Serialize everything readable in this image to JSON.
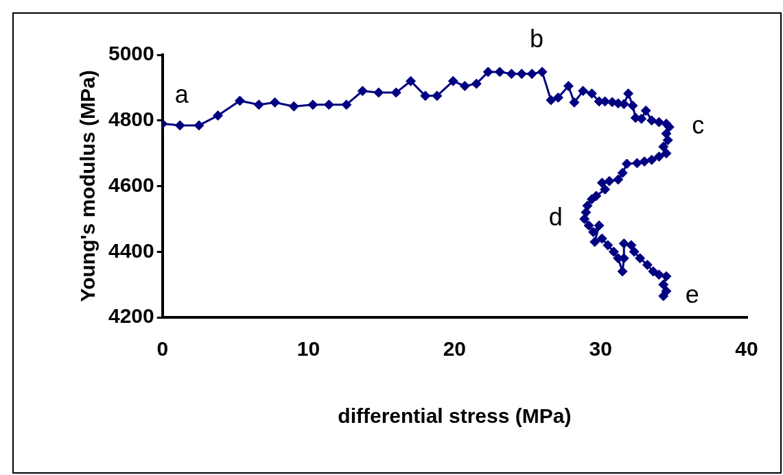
{
  "chart_data": {
    "type": "line",
    "xlabel": "differential stress (MPa)",
    "ylabel": "Young's modulus (MPa)",
    "xlim": [
      0,
      40
    ],
    "xticks": [
      0,
      10,
      20,
      30,
      40
    ],
    "ylim": [
      4200,
      5000
    ],
    "yticks": [
      4200,
      4400,
      4600,
      4800,
      5000
    ],
    "grid": false,
    "legend": false,
    "marker": "diamond",
    "line_style": "solid",
    "series": [
      {
        "color": "#000080",
        "x": [
          0,
          1.2,
          2.5,
          3.8,
          5.3,
          6.6,
          7.7,
          9,
          10.3,
          11.4,
          12.6,
          13.7,
          14.8,
          16,
          17,
          18,
          18.8,
          19.9,
          20.7,
          21.5,
          22.3,
          23.1,
          23.9,
          24.6,
          25.3,
          26,
          26.6,
          27.1,
          27.8,
          28.2,
          28.8,
          29.4,
          29.9,
          30.3,
          30.8,
          31.2,
          31.6,
          31.9,
          32.2,
          32.4,
          32.8,
          33.1,
          33.5,
          34,
          34.5,
          34.7,
          34.5,
          34.6,
          34.3,
          34.5,
          34,
          33.5,
          33,
          32.5,
          31.8,
          31.5,
          31.2,
          30.6,
          30.1,
          30.3,
          29.7,
          29.4,
          29.1,
          29,
          28.9,
          29.2,
          29.5,
          29.9,
          29.6,
          30.1,
          30.5,
          30.9,
          31.2,
          31.5,
          31.6,
          31.6,
          32.1,
          32.3,
          32.7,
          33.2,
          33.6,
          34,
          34.5,
          34.3,
          34.5,
          34.3
        ],
        "values": [
          4790,
          4785,
          4785,
          4815,
          4860,
          4848,
          4855,
          4843,
          4848,
          4848,
          4848,
          4890,
          4885,
          4885,
          4920,
          4875,
          4875,
          4920,
          4905,
          4912,
          4948,
          4948,
          4942,
          4942,
          4942,
          4948,
          4862,
          4870,
          4905,
          4855,
          4890,
          4882,
          4858,
          4858,
          4856,
          4852,
          4850,
          4882,
          4845,
          4808,
          4805,
          4830,
          4800,
          4795,
          4790,
          4780,
          4760,
          4740,
          4720,
          4700,
          4690,
          4680,
          4675,
          4670,
          4668,
          4640,
          4620,
          4615,
          4610,
          4590,
          4570,
          4560,
          4540,
          4520,
          4500,
          4480,
          4460,
          4480,
          4430,
          4440,
          4420,
          4400,
          4380,
          4340,
          4380,
          4425,
          4420,
          4400,
          4380,
          4360,
          4340,
          4330,
          4325,
          4300,
          4280,
          4265
        ]
      }
    ],
    "annotations": [
      {
        "text": "a",
        "x": 0,
        "y": 4790
      },
      {
        "text": "b",
        "x": 26,
        "y": 4948
      },
      {
        "text": "c",
        "x": 34.7,
        "y": 4780
      },
      {
        "text": "d",
        "x": 28.9,
        "y": 4500
      },
      {
        "text": "e",
        "x": 34.3,
        "y": 4265
      }
    ]
  }
}
